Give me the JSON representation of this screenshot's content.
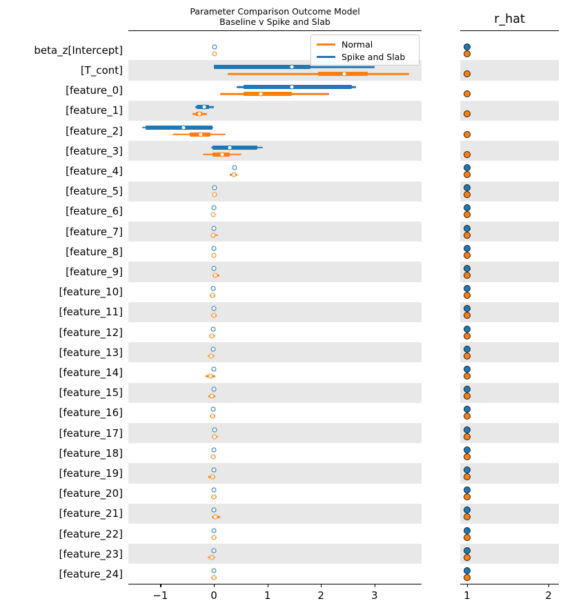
{
  "title": {
    "line1": "Parameter Comparison Outcome Model",
    "line2": "Baseline v Spike and Slab"
  },
  "rhat_panel_title": "r_hat",
  "legend": {
    "entries": [
      {
        "label": "Normal",
        "color": "#ff7f0e"
      },
      {
        "label": "Spike and Slab",
        "color": "#1f77b4"
      }
    ]
  },
  "colors": {
    "normal": "#ff7f0e",
    "spike_and_slab": "#1f77b4",
    "band": "#e8e8e8",
    "spine": "#000000"
  },
  "chart_data": {
    "type": "forest",
    "subplots": [
      {
        "name": "estimates",
        "xlim": [
          -1.6,
          3.88
        ],
        "ticks": [
          -1,
          0,
          1,
          2,
          3
        ],
        "tick_labels": [
          "−1",
          "0",
          "1",
          "2",
          "3"
        ]
      },
      {
        "name": "r_hat",
        "xlim": [
          0.9,
          2.12
        ],
        "ticks": [
          1,
          2
        ],
        "tick_labels": [
          "1",
          "2"
        ]
      }
    ],
    "models": [
      {
        "key": "ss",
        "name": "Spike and Slab",
        "color": "#1f77b4"
      },
      {
        "key": "nm",
        "name": "Normal",
        "color": "#ff7f0e"
      }
    ],
    "parameters": [
      {
        "name": "beta_z[Intercept]",
        "ss": {
          "med": 0.01,
          "hdi": null,
          "iqr": null
        },
        "nm": {
          "med": 0.01,
          "hdi": null,
          "iqr": null
        },
        "rhat": {
          "ss": 1.0,
          "nm": 1.0
        }
      },
      {
        "name": "[T_cont]",
        "ss": {
          "med": 1.45,
          "hdi": [
            0.0,
            3.0
          ],
          "iqr": [
            0.0,
            1.81
          ]
        },
        "nm": {
          "med": 2.44,
          "hdi": [
            0.26,
            3.65
          ],
          "iqr": [
            1.95,
            2.88
          ]
        },
        "rhat": {
          "ss": null,
          "nm": 1.0
        }
      },
      {
        "name": "[feature_0]",
        "ss": {
          "med": 1.46,
          "hdi": [
            0.42,
            2.66
          ],
          "iqr": [
            0.56,
            2.58
          ]
        },
        "nm": {
          "med": 0.88,
          "hdi": [
            0.11,
            2.15
          ],
          "iqr": [
            0.56,
            1.46
          ]
        },
        "rhat": {
          "ss": null,
          "nm": 1.0
        }
      },
      {
        "name": "[feature_1]",
        "ss": {
          "med": -0.18,
          "hdi": [
            -0.35,
            0.0
          ],
          "iqr": [
            -0.32,
            -0.09
          ]
        },
        "nm": {
          "med": -0.27,
          "hdi": [
            -0.4,
            -0.13
          ],
          "iqr": [
            -0.33,
            -0.22
          ]
        },
        "rhat": {
          "ss": null,
          "nm": 1.0
        }
      },
      {
        "name": "[feature_2]",
        "ss": {
          "med": -0.57,
          "hdi": [
            -1.34,
            -0.01
          ],
          "iqr": [
            -1.27,
            -0.02
          ]
        },
        "nm": {
          "med": -0.25,
          "hdi": [
            -0.77,
            0.22
          ],
          "iqr": [
            -0.45,
            -0.07
          ]
        },
        "rhat": {
          "ss": null,
          "nm": 1.0
        }
      },
      {
        "name": "[feature_3]",
        "ss": {
          "med": 0.3,
          "hdi": [
            -0.05,
            0.92
          ],
          "iqr": [
            -0.02,
            0.81
          ]
        },
        "nm": {
          "med": 0.15,
          "hdi": [
            -0.21,
            0.52
          ],
          "iqr": [
            -0.02,
            0.3
          ]
        },
        "rhat": {
          "ss": null,
          "nm": 1.0
        }
      },
      {
        "name": "[feature_4]",
        "ss": {
          "med": 0.39,
          "hdi": null,
          "iqr": null
        },
        "nm": {
          "med": 0.37,
          "hdi": [
            0.3,
            0.44
          ],
          "iqr": null
        },
        "rhat": {
          "ss": 1.0,
          "nm": 1.0
        }
      },
      {
        "name": "[feature_5]",
        "ss": {
          "med": 0.01,
          "hdi": null,
          "iqr": null
        },
        "nm": {
          "med": 0.01,
          "hdi": [
            -0.03,
            0.05
          ],
          "iqr": null
        },
        "rhat": {
          "ss": 1.0,
          "nm": 1.0
        }
      },
      {
        "name": "[feature_6]",
        "ss": {
          "med": 0.0,
          "hdi": null,
          "iqr": null
        },
        "nm": {
          "med": -0.01,
          "hdi": [
            -0.05,
            0.03
          ],
          "iqr": null
        },
        "rhat": {
          "ss": 1.0,
          "nm": 1.0
        }
      },
      {
        "name": "[feature_7]",
        "ss": {
          "med": 0.0,
          "hdi": null,
          "iqr": null
        },
        "nm": {
          "med": -0.01,
          "hdi": [
            -0.04,
            0.08
          ],
          "iqr": null
        },
        "rhat": {
          "ss": 1.0,
          "nm": 1.0
        }
      },
      {
        "name": "[feature_8]",
        "ss": {
          "med": 0.0,
          "hdi": null,
          "iqr": null
        },
        "nm": {
          "med": 0.0,
          "hdi": [
            -0.04,
            0.04
          ],
          "iqr": null
        },
        "rhat": {
          "ss": 1.0,
          "nm": 1.0
        }
      },
      {
        "name": "[feature_9]",
        "ss": {
          "med": 0.0,
          "hdi": null,
          "iqr": null
        },
        "nm": {
          "med": 0.03,
          "hdi": [
            -0.02,
            0.1
          ],
          "iqr": null
        },
        "rhat": {
          "ss": 1.0,
          "nm": 1.0
        }
      },
      {
        "name": "[feature_10]",
        "ss": {
          "med": -0.01,
          "hdi": null,
          "iqr": null
        },
        "nm": {
          "med": -0.03,
          "hdi": [
            -0.08,
            0.03
          ],
          "iqr": null
        },
        "rhat": {
          "ss": 1.0,
          "nm": 1.0
        }
      },
      {
        "name": "[feature_11]",
        "ss": {
          "med": 0.0,
          "hdi": null,
          "iqr": null
        },
        "nm": {
          "med": 0.0,
          "hdi": [
            -0.05,
            0.05
          ],
          "iqr": null
        },
        "rhat": {
          "ss": 1.0,
          "nm": 1.0
        }
      },
      {
        "name": "[feature_12]",
        "ss": {
          "med": -0.01,
          "hdi": null,
          "iqr": null
        },
        "nm": {
          "med": -0.04,
          "hdi": [
            -0.09,
            0.02
          ],
          "iqr": null
        },
        "rhat": {
          "ss": 1.0,
          "nm": 1.0
        }
      },
      {
        "name": "[feature_13]",
        "ss": {
          "med": -0.01,
          "hdi": null,
          "iqr": null
        },
        "nm": {
          "med": -0.05,
          "hdi": [
            -0.12,
            0.01
          ],
          "iqr": null
        },
        "rhat": {
          "ss": 1.0,
          "nm": 1.0
        }
      },
      {
        "name": "[feature_14]",
        "ss": {
          "med": 0.0,
          "hdi": null,
          "iqr": null
        },
        "nm": {
          "med": -0.06,
          "hdi": [
            -0.15,
            0.02
          ],
          "iqr": null
        },
        "rhat": {
          "ss": 1.0,
          "nm": 1.0
        }
      },
      {
        "name": "[feature_15]",
        "ss": {
          "med": 0.0,
          "hdi": null,
          "iqr": null
        },
        "nm": {
          "med": -0.04,
          "hdi": [
            -0.1,
            0.03
          ],
          "iqr": null
        },
        "rhat": {
          "ss": 1.0,
          "nm": 1.0
        }
      },
      {
        "name": "[feature_16]",
        "ss": {
          "med": -0.01,
          "hdi": null,
          "iqr": null
        },
        "nm": {
          "med": -0.03,
          "hdi": [
            -0.08,
            0.03
          ],
          "iqr": null
        },
        "rhat": {
          "ss": 1.0,
          "nm": 1.0
        }
      },
      {
        "name": "[feature_17]",
        "ss": {
          "med": 0.01,
          "hdi": null,
          "iqr": null
        },
        "nm": {
          "med": 0.01,
          "hdi": [
            -0.04,
            0.08
          ],
          "iqr": null
        },
        "rhat": {
          "ss": 1.0,
          "nm": 1.0
        }
      },
      {
        "name": "[feature_18]",
        "ss": {
          "med": 0.0,
          "hdi": null,
          "iqr": null
        },
        "nm": {
          "med": -0.01,
          "hdi": [
            -0.06,
            0.04
          ],
          "iqr": null
        },
        "rhat": {
          "ss": 1.0,
          "nm": 1.0
        }
      },
      {
        "name": "[feature_19]",
        "ss": {
          "med": 0.0,
          "hdi": null,
          "iqr": null
        },
        "nm": {
          "med": -0.03,
          "hdi": [
            -0.1,
            0.03
          ],
          "iqr": null
        },
        "rhat": {
          "ss": 1.0,
          "nm": 1.0
        }
      },
      {
        "name": "[feature_20]",
        "ss": {
          "med": 0.0,
          "hdi": null,
          "iqr": null
        },
        "nm": {
          "med": 0.0,
          "hdi": [
            -0.05,
            0.05
          ],
          "iqr": null
        },
        "rhat": {
          "ss": 1.0,
          "nm": 1.0
        }
      },
      {
        "name": "[feature_21]",
        "ss": {
          "med": 0.0,
          "hdi": null,
          "iqr": null
        },
        "nm": {
          "med": 0.02,
          "hdi": [
            -0.04,
            0.12
          ],
          "iqr": null
        },
        "rhat": {
          "ss": 1.0,
          "nm": 1.0
        }
      },
      {
        "name": "[feature_22]",
        "ss": {
          "med": 0.0,
          "hdi": null,
          "iqr": null
        },
        "nm": {
          "med": 0.0,
          "hdi": [
            -0.05,
            0.05
          ],
          "iqr": null
        },
        "rhat": {
          "ss": 1.0,
          "nm": 1.0
        }
      },
      {
        "name": "[feature_23]",
        "ss": {
          "med": 0.0,
          "hdi": null,
          "iqr": null
        },
        "nm": {
          "med": -0.04,
          "hdi": [
            -0.11,
            0.02
          ],
          "iqr": null
        },
        "rhat": {
          "ss": 1.0,
          "nm": 1.0
        }
      },
      {
        "name": "[feature_24]",
        "ss": {
          "med": 0.0,
          "hdi": null,
          "iqr": null
        },
        "nm": {
          "med": 0.0,
          "hdi": [
            -0.05,
            0.05
          ],
          "iqr": null
        },
        "rhat": {
          "ss": 1.0,
          "nm": 1.0
        }
      }
    ]
  }
}
